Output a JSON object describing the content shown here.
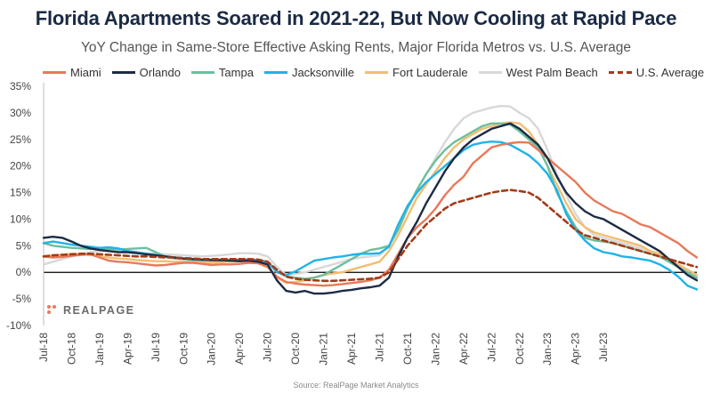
{
  "header": {
    "title": "Florida Apartments Soared in 2021-22, But Now Cooling at Rapid Pace",
    "subtitle": "YoY Change in Same-Store Effective Asking Rents, Major Florida Metros vs. U.S. Average"
  },
  "source": "Source: RealPage Market Analytics",
  "logo_text": "REALPAGE",
  "colors": {
    "Miami": "#e8795a",
    "Orlando": "#1c2b45",
    "Tampa": "#6dbf9c",
    "Jacksonville": "#1fb3e8",
    "Fort Lauderale": "#f2bd72",
    "West Palm Beach": "#d8d8d8",
    "U.S. Average": "#a33b16",
    "zero_line": "#000000",
    "axis_text": "#444444"
  },
  "chart_data": {
    "type": "line",
    "title": "YoY Change in Same-Store Effective Asking Rents, Major Florida Metros vs. U.S. Average",
    "xlabel": "",
    "ylabel": "",
    "ylim": [
      -10,
      35
    ],
    "yticks": [
      -10,
      -5,
      0,
      5,
      10,
      15,
      20,
      25,
      30,
      35
    ],
    "ytick_labels": [
      "-10%",
      "-5%",
      "0%",
      "5%",
      "10%",
      "15%",
      "20%",
      "25%",
      "30%",
      "35%"
    ],
    "x_tick_labels": [
      "Jul-18",
      "Oct-18",
      "Jan-19",
      "Apr-19",
      "Jul-19",
      "Oct-19",
      "Jan-20",
      "Apr-20",
      "Jul-20",
      "Oct-20",
      "Jan-21",
      "Apr-21",
      "Jul-21",
      "Oct-21",
      "Jan-22",
      "Apr-22",
      "Jul-22",
      "Oct-22",
      "Jan-23",
      "Apr-23",
      "Jul-23"
    ],
    "x_start": "Jul-18",
    "x_end": "Jul-23",
    "x_step": "month",
    "legend_position": "top",
    "grid": false,
    "series": [
      {
        "name": "Miami",
        "style": "solid",
        "values": [
          3.0,
          2.8,
          2.9,
          3.1,
          3.3,
          3.4,
          2.8,
          2.2,
          2.0,
          1.9,
          1.7,
          1.5,
          1.3,
          1.4,
          1.6,
          1.8,
          1.8,
          1.6,
          1.4,
          1.5,
          1.5,
          1.6,
          1.8,
          1.7,
          1.0,
          -0.8,
          -1.8,
          -2.1,
          -2.3,
          -2.4,
          -2.5,
          -2.4,
          -2.2,
          -2.0,
          -1.8,
          -1.5,
          -1.0,
          0.5,
          3.5,
          6.5,
          8.5,
          10.0,
          12.0,
          14.5,
          16.5,
          18.0,
          20.5,
          22.0,
          23.5,
          24.0,
          24.3,
          24.5,
          24.4,
          23.0,
          21.5,
          20.0,
          18.5,
          17.0,
          15.0,
          13.5,
          12.5,
          11.5,
          11.0,
          10.0,
          9.0,
          8.5,
          7.5,
          6.5,
          5.5,
          4.0,
          2.8
        ]
      },
      {
        "name": "Orlando",
        "style": "solid",
        "values": [
          6.5,
          6.7,
          6.5,
          5.8,
          5.0,
          4.5,
          4.2,
          4.0,
          3.8,
          3.8,
          3.6,
          3.4,
          3.2,
          3.0,
          2.8,
          2.6,
          2.5,
          2.4,
          2.3,
          2.3,
          2.2,
          2.1,
          2.2,
          2.0,
          1.5,
          -1.5,
          -3.5,
          -3.8,
          -3.5,
          -4.0,
          -4.0,
          -3.8,
          -3.5,
          -3.3,
          -3.0,
          -2.8,
          -2.5,
          -1.0,
          3.0,
          6.5,
          9.5,
          13.0,
          16.0,
          19.0,
          21.5,
          23.5,
          25.0,
          26.0,
          27.0,
          27.5,
          28.0,
          27.0,
          25.5,
          24.0,
          21.5,
          18.0,
          15.0,
          13.0,
          11.5,
          10.5,
          10.0,
          9.0,
          8.0,
          7.0,
          6.0,
          5.0,
          4.0,
          2.5,
          1.0,
          -0.5,
          -1.5
        ]
      },
      {
        "name": "Tampa",
        "style": "solid",
        "values": [
          5.5,
          5.0,
          4.8,
          4.6,
          4.5,
          4.4,
          4.5,
          4.4,
          4.3,
          4.4,
          4.5,
          4.6,
          3.8,
          3.0,
          2.6,
          2.5,
          2.4,
          2.3,
          2.3,
          2.2,
          2.3,
          2.4,
          2.4,
          2.3,
          2.0,
          0.2,
          -0.8,
          -1.0,
          -1.2,
          -1.0,
          -0.5,
          0.5,
          1.5,
          2.5,
          3.5,
          4.2,
          4.5,
          5.0,
          8.0,
          12.0,
          15.5,
          18.5,
          21.0,
          23.0,
          24.5,
          25.5,
          26.5,
          27.5,
          28.0,
          28.0,
          27.8,
          26.5,
          25.0,
          23.5,
          20.0,
          15.0,
          11.5,
          8.5,
          6.5,
          6.0,
          5.8,
          5.5,
          5.0,
          4.5,
          4.0,
          3.5,
          3.0,
          2.0,
          1.0,
          0.0,
          -1.0
        ]
      },
      {
        "name": "Jacksonville",
        "style": "solid",
        "values": [
          5.5,
          5.8,
          5.5,
          5.2,
          5.0,
          4.8,
          4.6,
          4.7,
          4.5,
          4.0,
          3.8,
          3.5,
          3.3,
          3.0,
          2.8,
          2.6,
          2.4,
          2.3,
          2.4,
          2.3,
          2.2,
          2.4,
          2.4,
          2.3,
          2.0,
          0.0,
          -0.5,
          0.2,
          1.2,
          2.2,
          2.5,
          2.8,
          3.0,
          3.3,
          3.5,
          3.5,
          3.6,
          4.8,
          9.0,
          12.5,
          15.0,
          17.0,
          18.5,
          20.0,
          21.5,
          23.0,
          24.0,
          24.4,
          24.6,
          24.5,
          24.0,
          23.0,
          22.0,
          20.5,
          18.5,
          15.5,
          11.0,
          8.0,
          6.0,
          4.5,
          3.8,
          3.5,
          3.0,
          2.8,
          2.5,
          2.2,
          1.5,
          0.5,
          -0.8,
          -2.5,
          -3.2
        ]
      },
      {
        "name": "Fort Lauderale",
        "style": "solid",
        "values": [
          3.0,
          3.2,
          3.3,
          3.5,
          3.4,
          3.3,
          3.0,
          2.8,
          2.6,
          2.5,
          2.3,
          2.2,
          2.1,
          2.1,
          2.0,
          2.0,
          2.0,
          1.9,
          1.8,
          1.9,
          2.0,
          2.1,
          2.2,
          2.1,
          1.0,
          -1.0,
          -2.0,
          -1.8,
          -1.5,
          -1.0,
          -0.5,
          -0.2,
          0.0,
          0.5,
          1.0,
          1.5,
          2.0,
          4.0,
          7.0,
          10.5,
          14.0,
          16.5,
          19.0,
          21.5,
          23.5,
          25.0,
          26.0,
          27.0,
          27.5,
          28.0,
          28.2,
          28.0,
          26.5,
          24.0,
          20.0,
          16.5,
          13.0,
          10.0,
          8.5,
          7.5,
          7.0,
          6.5,
          6.0,
          5.5,
          5.0,
          4.0,
          3.5,
          2.5,
          1.5,
          0.5,
          -0.5
        ]
      },
      {
        "name": "West Palm Beach",
        "style": "solid",
        "values": [
          1.5,
          2.0,
          2.5,
          3.0,
          3.5,
          3.8,
          4.0,
          4.0,
          3.8,
          3.8,
          3.7,
          3.6,
          3.5,
          3.4,
          3.3,
          3.2,
          3.1,
          3.0,
          3.1,
          3.2,
          3.4,
          3.6,
          3.6,
          3.5,
          3.0,
          1.0,
          -0.5,
          -0.3,
          0.0,
          0.5,
          1.0,
          1.5,
          2.0,
          2.5,
          2.8,
          3.0,
          3.2,
          5.0,
          8.5,
          12.0,
          15.5,
          18.5,
          21.5,
          24.5,
          27.0,
          29.0,
          30.0,
          30.5,
          31.0,
          31.3,
          31.2,
          30.0,
          29.0,
          27.0,
          23.0,
          18.5,
          14.5,
          11.0,
          8.5,
          7.0,
          6.5,
          6.0,
          5.5,
          5.0,
          4.5,
          4.0,
          3.5,
          2.5,
          1.5,
          0.5,
          -0.5
        ]
      },
      {
        "name": "U.S. Average",
        "style": "dashed",
        "values": [
          3.0,
          3.2,
          3.3,
          3.4,
          3.5,
          3.5,
          3.4,
          3.3,
          3.2,
          3.1,
          3.0,
          3.0,
          2.9,
          2.8,
          2.8,
          2.7,
          2.6,
          2.5,
          2.5,
          2.5,
          2.5,
          2.5,
          2.5,
          2.4,
          2.0,
          0.5,
          -0.8,
          -1.2,
          -1.4,
          -1.5,
          -1.6,
          -1.6,
          -1.5,
          -1.4,
          -1.3,
          -1.2,
          -1.0,
          0.0,
          2.5,
          5.0,
          7.0,
          9.0,
          10.5,
          12.0,
          13.0,
          13.5,
          14.0,
          14.5,
          15.0,
          15.3,
          15.5,
          15.3,
          15.0,
          14.0,
          12.5,
          11.0,
          9.5,
          8.0,
          7.0,
          6.5,
          6.0,
          5.5,
          5.0,
          4.5,
          4.0,
          3.5,
          3.0,
          2.5,
          2.0,
          1.5,
          1.0
        ]
      }
    ]
  }
}
